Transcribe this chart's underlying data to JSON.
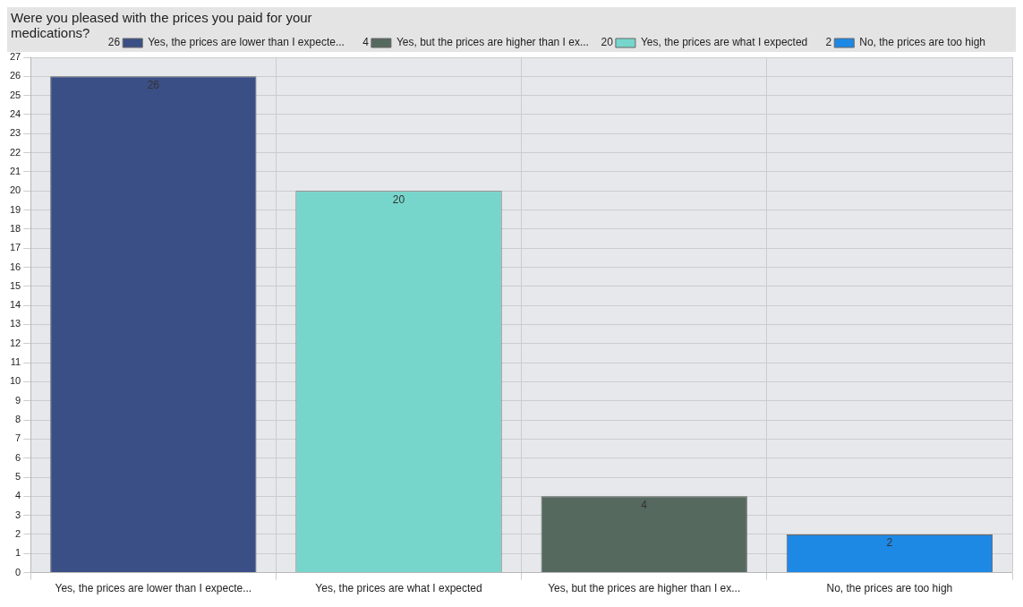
{
  "chart_data": {
    "type": "bar",
    "title": "Were you pleased with the prices you paid for your medications?",
    "categories": [
      "Yes, the prices are lower than I expecte...",
      "Yes, the prices are what I expected",
      "Yes, but the prices are higher than I ex...",
      "No, the prices are too high"
    ],
    "series": [
      {
        "name": "Yes, the prices are lower than I expecte...",
        "color": "#3a4f86",
        "values": [
          26,
          null,
          null,
          null
        ]
      },
      {
        "name": "Yes, the prices are what I expected",
        "color": "#76d6cc",
        "values": [
          null,
          20,
          null,
          null
        ]
      },
      {
        "name": "Yes, but the prices are higher than I ex...",
        "color": "#55695f",
        "values": [
          null,
          null,
          4,
          null
        ]
      },
      {
        "name": "No, the prices are too high",
        "color": "#1e88e5",
        "values": [
          null,
          null,
          null,
          2
        ]
      }
    ],
    "ylim": [
      0,
      27
    ],
    "yticks": [
      0,
      1,
      2,
      3,
      4,
      5,
      6,
      7,
      8,
      9,
      10,
      11,
      12,
      13,
      14,
      15,
      16,
      17,
      18,
      19,
      20,
      21,
      22,
      23,
      24,
      25,
      26,
      27
    ],
    "annotations": [
      "26",
      "20",
      "4",
      "2"
    ],
    "grid": true,
    "legend": "top right",
    "data_labels": true
  }
}
